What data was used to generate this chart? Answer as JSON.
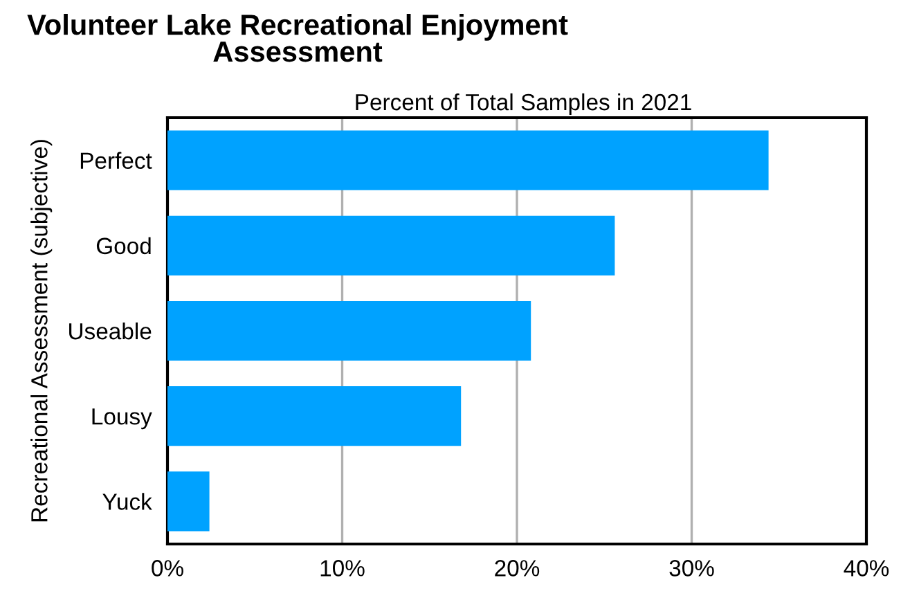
{
  "chart_data": {
    "type": "bar",
    "orientation": "horizontal",
    "title": "Volunteer Lake Recreational Enjoyment\nAssessment",
    "subtitle": "Percent of Total Samples in 2021",
    "ylabel": "Recreational Assessment (subjective)",
    "categories": [
      "Perfect",
      "Good",
      "Useable",
      "Lousy",
      "Yuck"
    ],
    "values": [
      34.4,
      25.6,
      20.8,
      16.8,
      2.4
    ],
    "color": "#00a2ff",
    "xlim": [
      0,
      40
    ],
    "xticks": [
      {
        "value": 0,
        "label": "0%"
      },
      {
        "value": 10,
        "label": "10%"
      },
      {
        "value": 20,
        "label": "20%"
      },
      {
        "value": 30,
        "label": "30%"
      },
      {
        "value": 40,
        "label": "40%"
      }
    ],
    "grid": "x",
    "legend": false
  }
}
